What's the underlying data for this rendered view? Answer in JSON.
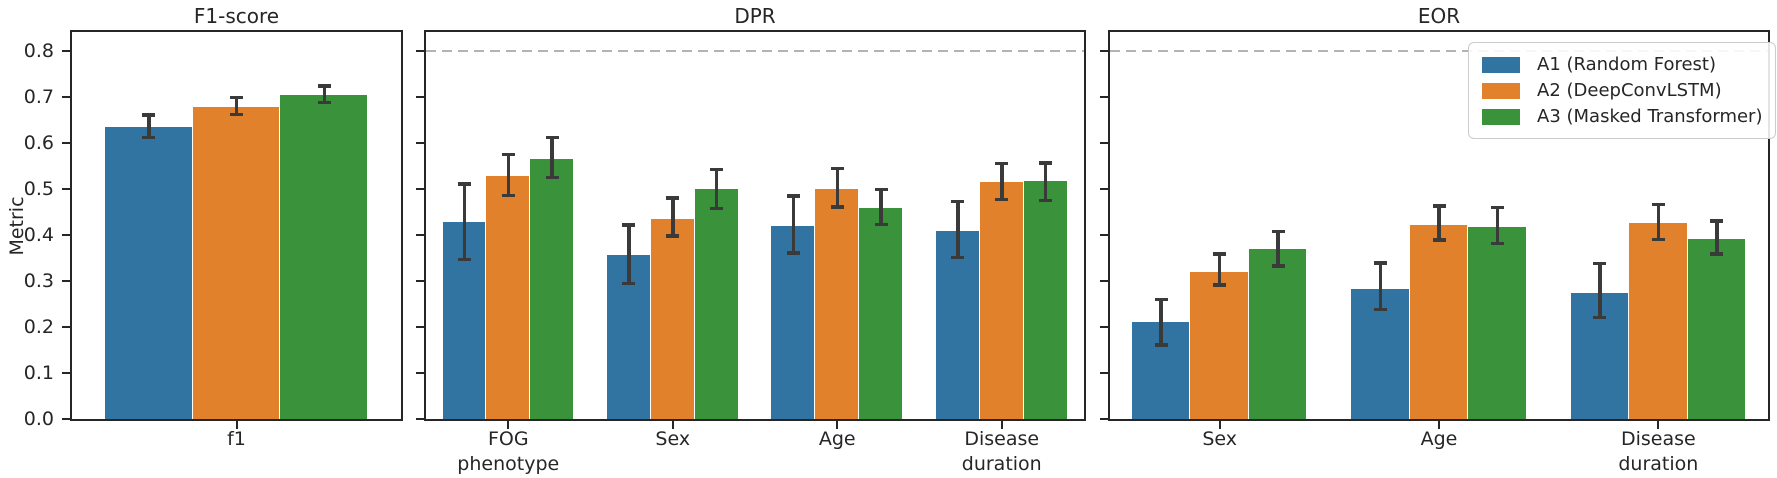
{
  "chart_data": [
    {
      "type": "bar",
      "title": "F1-score",
      "ylabel": "Metric",
      "ylim": [
        0,
        0.8417
      ],
      "yticks": [
        0,
        0.1,
        0.2,
        0.3,
        0.4,
        0.5,
        0.6,
        0.7,
        0.8
      ],
      "show_ytick_labels": true,
      "reference_line_y": null,
      "grid": false,
      "categories": [
        "f1"
      ],
      "series": [
        {
          "name": "A1 (Random Forest)",
          "color": "#3274a1",
          "values": [
            0.635
          ],
          "err_lo": [
            0.612
          ],
          "err_hi": [
            0.661
          ]
        },
        {
          "name": "A2 (DeepConvLSTM)",
          "color": "#e1812c",
          "values": [
            0.678
          ],
          "err_lo": [
            0.663
          ],
          "err_hi": [
            0.7
          ]
        },
        {
          "name": "A3 (Masked Transformer)",
          "color": "#3a923a",
          "values": [
            0.705
          ],
          "err_lo": [
            0.689
          ],
          "err_hi": [
            0.724
          ]
        }
      ]
    },
    {
      "type": "bar",
      "title": "DPR",
      "ylabel": "",
      "ylim": [
        0,
        0.8417
      ],
      "yticks": [
        0,
        0.1,
        0.2,
        0.3,
        0.4,
        0.5,
        0.6,
        0.7,
        0.8
      ],
      "show_ytick_labels": false,
      "reference_line_y": 0.8,
      "grid": false,
      "categories": [
        "FOG\nphenotype",
        "Sex",
        "Age",
        "Disease\nduration"
      ],
      "series": [
        {
          "name": "A1 (Random Forest)",
          "color": "#3274a1",
          "values": [
            0.429,
            0.358,
            0.42,
            0.41
          ],
          "err_lo": [
            0.347,
            0.295,
            0.361,
            0.352
          ],
          "err_hi": [
            0.512,
            0.422,
            0.485,
            0.473
          ]
        },
        {
          "name": "A2 (DeepConvLSTM)",
          "color": "#e1812c",
          "values": [
            0.528,
            0.436,
            0.5,
            0.515
          ],
          "err_lo": [
            0.486,
            0.399,
            0.462,
            0.478
          ],
          "err_hi": [
            0.576,
            0.481,
            0.545,
            0.556
          ]
        },
        {
          "name": "A3 (Masked Transformer)",
          "color": "#3a923a",
          "values": [
            0.566,
            0.5,
            0.46,
            0.517
          ],
          "err_lo": [
            0.526,
            0.458,
            0.424,
            0.476
          ],
          "err_hi": [
            0.612,
            0.543,
            0.5,
            0.557
          ]
        }
      ]
    },
    {
      "type": "bar",
      "title": "EOR",
      "ylabel": "",
      "ylim": [
        0,
        0.8417
      ],
      "yticks": [
        0,
        0.1,
        0.2,
        0.3,
        0.4,
        0.5,
        0.6,
        0.7,
        0.8
      ],
      "show_ytick_labels": false,
      "reference_line_y": 0.8,
      "grid": false,
      "categories": [
        "Sex",
        "Age",
        "Disease\nduration"
      ],
      "series": [
        {
          "name": "A1 (Random Forest)",
          "color": "#3274a1",
          "values": [
            0.211,
            0.283,
            0.274
          ],
          "err_lo": [
            0.162,
            0.239,
            0.221
          ],
          "err_hi": [
            0.26,
            0.34,
            0.339
          ]
        },
        {
          "name": "A2 (DeepConvLSTM)",
          "color": "#e1812c",
          "values": [
            0.321,
            0.422,
            0.427
          ],
          "err_lo": [
            0.292,
            0.39,
            0.391
          ],
          "err_hi": [
            0.359,
            0.464,
            0.467
          ]
        },
        {
          "name": "A3 (Masked Transformer)",
          "color": "#3a923a",
          "values": [
            0.37,
            0.418,
            0.392
          ],
          "err_lo": [
            0.333,
            0.382,
            0.359
          ],
          "err_hi": [
            0.408,
            0.46,
            0.431
          ]
        }
      ]
    }
  ],
  "legend": {
    "position": "top-right",
    "items": [
      {
        "label": "A1 (Random Forest)",
        "color": "#3274a1"
      },
      {
        "label": "A2 (DeepConvLSTM)",
        "color": "#e1812c"
      },
      {
        "label": "A3 (Masked Transformer)",
        "color": "#3a923a"
      }
    ]
  },
  "style": {
    "errorbar_color": "#3a3a3a",
    "reference_line_color": "#b3b3b3",
    "axis_color": "#262626"
  }
}
